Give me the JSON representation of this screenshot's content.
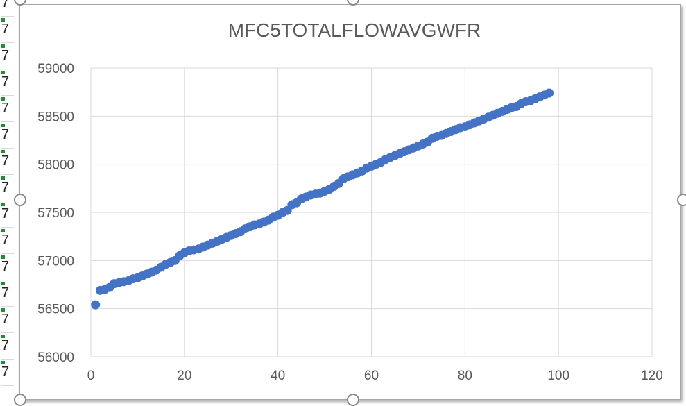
{
  "sheet": {
    "column_cells": [
      "7",
      "7",
      "7",
      "7",
      "7",
      "7",
      "7",
      "7",
      "7",
      "7",
      "7",
      "7",
      "7",
      "7",
      "7"
    ]
  },
  "chart_data": {
    "type": "scatter",
    "title": "MFC5TOTALFLOWAVGWFR",
    "xlabel": "",
    "ylabel": "",
    "xlim": [
      0,
      120
    ],
    "ylim": [
      56000,
      59000
    ],
    "x_ticks": [
      0,
      20,
      40,
      60,
      80,
      100,
      120
    ],
    "y_ticks": [
      56000,
      56500,
      57000,
      57500,
      58000,
      58500,
      59000
    ],
    "grid": true,
    "legend": "none",
    "marker_color": "#4472C4",
    "points": [
      [
        1,
        56540
      ],
      [
        2,
        56690
      ],
      [
        3,
        56700
      ],
      [
        4,
        56720
      ],
      [
        5,
        56760
      ],
      [
        6,
        56770
      ],
      [
        7,
        56780
      ],
      [
        8,
        56790
      ],
      [
        9,
        56810
      ],
      [
        10,
        56820
      ],
      [
        11,
        56840
      ],
      [
        12,
        56860
      ],
      [
        13,
        56880
      ],
      [
        14,
        56900
      ],
      [
        15,
        56930
      ],
      [
        16,
        56960
      ],
      [
        17,
        56980
      ],
      [
        18,
        57000
      ],
      [
        19,
        57050
      ],
      [
        20,
        57080
      ],
      [
        21,
        57100
      ],
      [
        22,
        57110
      ],
      [
        23,
        57120
      ],
      [
        24,
        57140
      ],
      [
        25,
        57160
      ],
      [
        26,
        57180
      ],
      [
        27,
        57200
      ],
      [
        28,
        57220
      ],
      [
        29,
        57240
      ],
      [
        30,
        57260
      ],
      [
        31,
        57280
      ],
      [
        32,
        57300
      ],
      [
        33,
        57330
      ],
      [
        34,
        57350
      ],
      [
        35,
        57370
      ],
      [
        36,
        57380
      ],
      [
        37,
        57400
      ],
      [
        38,
        57420
      ],
      [
        39,
        57450
      ],
      [
        40,
        57470
      ],
      [
        41,
        57500
      ],
      [
        42,
        57520
      ],
      [
        43,
        57580
      ],
      [
        44,
        57600
      ],
      [
        45,
        57640
      ],
      [
        46,
        57660
      ],
      [
        47,
        57680
      ],
      [
        48,
        57690
      ],
      [
        49,
        57700
      ],
      [
        50,
        57720
      ],
      [
        51,
        57740
      ],
      [
        52,
        57770
      ],
      [
        53,
        57800
      ],
      [
        54,
        57850
      ],
      [
        55,
        57870
      ],
      [
        56,
        57890
      ],
      [
        57,
        57910
      ],
      [
        58,
        57930
      ],
      [
        59,
        57960
      ],
      [
        60,
        57980
      ],
      [
        61,
        58000
      ],
      [
        62,
        58020
      ],
      [
        63,
        58050
      ],
      [
        64,
        58070
      ],
      [
        65,
        58090
      ],
      [
        66,
        58110
      ],
      [
        67,
        58130
      ],
      [
        68,
        58150
      ],
      [
        69,
        58170
      ],
      [
        70,
        58190
      ],
      [
        71,
        58210
      ],
      [
        72,
        58230
      ],
      [
        73,
        58270
      ],
      [
        74,
        58290
      ],
      [
        75,
        58300
      ],
      [
        76,
        58320
      ],
      [
        77,
        58340
      ],
      [
        78,
        58360
      ],
      [
        79,
        58380
      ],
      [
        80,
        58390
      ],
      [
        81,
        58410
      ],
      [
        82,
        58430
      ],
      [
        83,
        58450
      ],
      [
        84,
        58470
      ],
      [
        85,
        58490
      ],
      [
        86,
        58510
      ],
      [
        87,
        58530
      ],
      [
        88,
        58550
      ],
      [
        89,
        58570
      ],
      [
        90,
        58590
      ],
      [
        91,
        58600
      ],
      [
        92,
        58630
      ],
      [
        93,
        58650
      ],
      [
        94,
        58660
      ],
      [
        95,
        58680
      ],
      [
        96,
        58700
      ],
      [
        97,
        58720
      ],
      [
        98,
        58740
      ]
    ]
  }
}
